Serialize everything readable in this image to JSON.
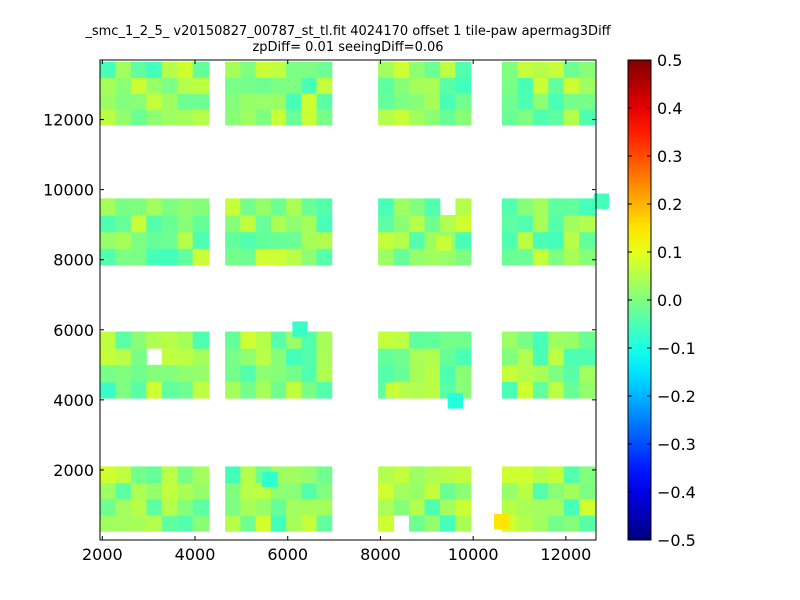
{
  "figure": {
    "title_line1": "_smc_1_2_5_ v20150827_00787_st_tl.fit 4024170 offset 1 tile-paw apermag3Diff",
    "title_line2": "zpDiff= 0.01 seeingDiff=0.06"
  },
  "chart_data": {
    "type": "heatmap",
    "title": "_smc_1_2_5_ v20150827_00787_st_tl.fit 4024170 offset 1 tile-paw apermag3Diff",
    "subtitle": "zpDiff= 0.01 seeingDiff=0.06",
    "xlabel": "",
    "ylabel": "",
    "xlim": [
      1950,
      12650
    ],
    "ylim": [
      0,
      13700
    ],
    "xticks": [
      2000,
      4000,
      6000,
      8000,
      10000,
      12000
    ],
    "yticks": [
      2000,
      4000,
      6000,
      8000,
      10000,
      12000
    ],
    "colorbar": {
      "colormap": "jet",
      "vmin": -0.5,
      "vmax": 0.5,
      "ticks": [
        0.5,
        0.4,
        0.3,
        0.2,
        0.1,
        0.0,
        -0.1,
        -0.2,
        -0.3,
        -0.4,
        -0.5
      ],
      "tick_labels": [
        "0.5",
        "0.4",
        "0.3",
        "0.2",
        "0.1",
        "0.0",
        "−0.1",
        "−0.2",
        "−0.3",
        "−0.4",
        "−0.5"
      ]
    },
    "cell_size": [
      330,
      440
    ],
    "tile_columns": [
      {
        "x_range": [
          1950,
          3950
        ],
        "cells": 6
      },
      {
        "x_range": [
          3950,
          4300
        ],
        "cells": 1
      },
      {
        "x_range": [
          4650,
          6950
        ],
        "cells": 7
      },
      {
        "x_range": [
          7950,
          9950
        ],
        "cells": 6
      },
      {
        "x_range": [
          10620,
          12620
        ],
        "cells": 6
      }
    ],
    "tile_rows": [
      {
        "y_range": [
          250,
          2100
        ],
        "cells": 4
      },
      {
        "y_range": [
          4050,
          5950
        ],
        "cells": 4
      },
      {
        "y_range": [
          7850,
          9750
        ],
        "cells": 4
      },
      {
        "y_range": [
          11850,
          13650
        ],
        "cells": 4
      }
    ],
    "typical_value": 0.0,
    "value_spread": [
      -0.06,
      0.08
    ],
    "notable_cells": [
      {
        "x": 10450,
        "y": 300,
        "value": 0.15
      },
      {
        "x": 5450,
        "y": 1500,
        "value": -0.08
      },
      {
        "x": 6100,
        "y": 5800,
        "value": -0.07
      },
      {
        "x": 9450,
        "y": 3750,
        "value": -0.09
      },
      {
        "x": 1950,
        "y": 4050,
        "value": -0.07
      },
      {
        "x": 12600,
        "y": 9450,
        "value": -0.06
      },
      {
        "x": 8100,
        "y": 4050,
        "value": 0.07
      },
      {
        "x": 9200,
        "y": 8250,
        "value": 0.07
      }
    ],
    "empty_cells": [
      {
        "x": 3150,
        "y": 5050
      },
      {
        "x": 9300,
        "y": 9300
      },
      {
        "x": 8450,
        "y": 500
      }
    ]
  }
}
